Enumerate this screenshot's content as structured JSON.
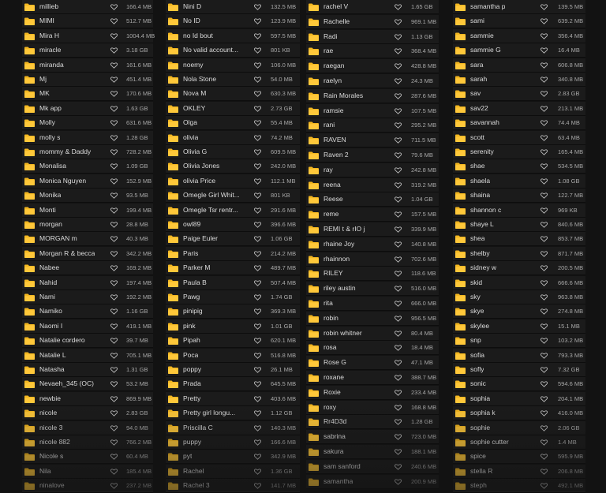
{
  "columns": [
    {
      "rows": [
        {
          "name": "millieb",
          "size": "166.4 MB"
        },
        {
          "name": "MIMI",
          "size": "512.7 MB"
        },
        {
          "name": "Mira H",
          "size": "1004.4 MB"
        },
        {
          "name": "miracle",
          "size": "3.18 GB"
        },
        {
          "name": "miranda",
          "size": "161.6 MB"
        },
        {
          "name": "Mj",
          "size": "451.4 MB"
        },
        {
          "name": "MK",
          "size": "170.6 MB"
        },
        {
          "name": "Mk app",
          "size": "1.63 GB"
        },
        {
          "name": "Molly",
          "size": "631.6 MB"
        },
        {
          "name": "molly s",
          "size": "1.28 GB"
        },
        {
          "name": "mommy & Daddy",
          "size": "728.2 MB"
        },
        {
          "name": "Monalisa",
          "size": "1.09 GB"
        },
        {
          "name": "Monica Nguyen",
          "size": "152.9 MB"
        },
        {
          "name": "Monika",
          "size": "93.5 MB"
        },
        {
          "name": "Monti",
          "size": "199.4 MB"
        },
        {
          "name": "morgan",
          "size": "28.8 MB"
        },
        {
          "name": "MORGAN m",
          "size": "40.3 MB"
        },
        {
          "name": "Morgan R & becca",
          "size": "342.2 MB"
        },
        {
          "name": "Nabee",
          "size": "169.2 MB"
        },
        {
          "name": "Nahid",
          "size": "197.4 MB"
        },
        {
          "name": "Nami",
          "size": "192.2 MB"
        },
        {
          "name": "Namiko",
          "size": "1.16 GB"
        },
        {
          "name": "Naomi I",
          "size": "419.1 MB"
        },
        {
          "name": "Natalie cordero",
          "size": "39.7 MB"
        },
        {
          "name": "Natalie L",
          "size": "705.1 MB"
        },
        {
          "name": "Natasha",
          "size": "1.31 GB"
        },
        {
          "name": "Nevaeh_345 (OC)",
          "size": "53.2 MB"
        },
        {
          "name": "newbie",
          "size": "869.9 MB"
        },
        {
          "name": "nicole",
          "size": "2.83 GB"
        },
        {
          "name": "nicole 3",
          "size": "94.0 MB"
        },
        {
          "name": "nicole 882",
          "size": "766.2 MB"
        },
        {
          "name": "Nicole s",
          "size": "60.4 MB"
        },
        {
          "name": "Nila",
          "size": "185.4 MB"
        },
        {
          "name": "ninalove",
          "size": "237.2 MB"
        }
      ]
    },
    {
      "rows": [
        {
          "name": "Nini D",
          "size": "132.5 MB"
        },
        {
          "name": "No ID",
          "size": "123.9 MB"
        },
        {
          "name": "no Id bout",
          "size": "597.5 MB"
        },
        {
          "name": "No valid account...",
          "size": "801 KB"
        },
        {
          "name": "noemy",
          "size": "106.0 MB"
        },
        {
          "name": "Nola Stone",
          "size": "54.0 MB"
        },
        {
          "name": "Nova M",
          "size": "630.3 MB"
        },
        {
          "name": "OKLEY",
          "size": "2.73 GB"
        },
        {
          "name": "Olga",
          "size": "55.4 MB"
        },
        {
          "name": "olivia",
          "size": "74.2 MB"
        },
        {
          "name": "Olivia G",
          "size": "609.5 MB"
        },
        {
          "name": "Olivia Jones",
          "size": "242.0 MB"
        },
        {
          "name": "olivia Price",
          "size": "112.1 MB"
        },
        {
          "name": "Omegle Girl Whit...",
          "size": "801 KB"
        },
        {
          "name": "Omegle Tsr rentr...",
          "size": "291.6 MB"
        },
        {
          "name": "owl89",
          "size": "396.6 MB"
        },
        {
          "name": "Paige Euler",
          "size": "1.06 GB"
        },
        {
          "name": "Paris",
          "size": "214.2 MB"
        },
        {
          "name": "Parker M",
          "size": "489.7 MB"
        },
        {
          "name": "Paula B",
          "size": "507.4 MB"
        },
        {
          "name": "Pawg",
          "size": "1.74 GB"
        },
        {
          "name": "pinipig",
          "size": "369.3 MB"
        },
        {
          "name": "pink",
          "size": "1.01 GB"
        },
        {
          "name": "Pipah",
          "size": "620.1 MB"
        },
        {
          "name": "Poca",
          "size": "516.8 MB"
        },
        {
          "name": "poppy",
          "size": "26.1 MB"
        },
        {
          "name": "Prada",
          "size": "645.5 MB"
        },
        {
          "name": "Pretty",
          "size": "403.6 MB"
        },
        {
          "name": "Pretty girl longu...",
          "size": "1.12 GB"
        },
        {
          "name": "Priscilla C",
          "size": "140.3 MB"
        },
        {
          "name": "puppy",
          "size": "166.6 MB"
        },
        {
          "name": "pyt",
          "size": "342.9 MB"
        },
        {
          "name": "Rachel",
          "size": "1.36 GB"
        },
        {
          "name": "Rachel 3",
          "size": "141.7 MB"
        }
      ]
    },
    {
      "rows": [
        {
          "name": "rachel V",
          "size": "1.65 GB"
        },
        {
          "name": "Rachelle",
          "size": "969.1 MB"
        },
        {
          "name": "Radi",
          "size": "1.13 GB"
        },
        {
          "name": "rae",
          "size": "368.4 MB"
        },
        {
          "name": "raegan",
          "size": "428.8 MB"
        },
        {
          "name": "raelyn",
          "size": "24.3 MB"
        },
        {
          "name": "Rain Morales",
          "size": "287.6 MB"
        },
        {
          "name": "ramsie",
          "size": "107.5 MB"
        },
        {
          "name": "rani",
          "size": "295.2 MB"
        },
        {
          "name": "RAVEN",
          "size": "711.5 MB"
        },
        {
          "name": "Raven 2",
          "size": "79.6 MB"
        },
        {
          "name": "ray",
          "size": "242.8 MB"
        },
        {
          "name": "reena",
          "size": "319.2 MB"
        },
        {
          "name": "Reese",
          "size": "1.04 GB"
        },
        {
          "name": "reme",
          "size": "157.5 MB"
        },
        {
          "name": "REMI t & rIO j",
          "size": "339.9 MB"
        },
        {
          "name": "rhaine Joy",
          "size": "140.8 MB"
        },
        {
          "name": "rhainnon",
          "size": "702.6 MB"
        },
        {
          "name": "RILEY",
          "size": "118.6 MB"
        },
        {
          "name": "riley austin",
          "size": "516.0 MB"
        },
        {
          "name": "rita",
          "size": "666.0 MB"
        },
        {
          "name": "robin",
          "size": "956.5 MB"
        },
        {
          "name": "robin whitner",
          "size": "80.4 MB"
        },
        {
          "name": "rosa",
          "size": "18.4 MB"
        },
        {
          "name": "Rose G",
          "size": "47.1 MB"
        },
        {
          "name": "roxane",
          "size": "388.7 MB"
        },
        {
          "name": "Roxie",
          "size": "233.4 MB"
        },
        {
          "name": "roxy",
          "size": "168.8 MB"
        },
        {
          "name": "Rr4D3d",
          "size": "1.28 GB"
        },
        {
          "name": "sabrina",
          "size": "723.0 MB"
        },
        {
          "name": "sakura",
          "size": "188.1 MB"
        },
        {
          "name": "sam sanford",
          "size": "240.6 MB"
        },
        {
          "name": "samantha",
          "size": "200.9 MB"
        }
      ]
    },
    {
      "rows": [
        {
          "name": "samantha p",
          "size": "139.5 MB"
        },
        {
          "name": "sami",
          "size": "639.2 MB"
        },
        {
          "name": "sammie",
          "size": "356.4 MB"
        },
        {
          "name": "sammie G",
          "size": "16.4 MB"
        },
        {
          "name": "sara",
          "size": "606.8 MB"
        },
        {
          "name": "sarah",
          "size": "340.8 MB"
        },
        {
          "name": "sav",
          "size": "2.83 GB"
        },
        {
          "name": "sav22",
          "size": "213.1 MB"
        },
        {
          "name": "savannah",
          "size": "74.4 MB"
        },
        {
          "name": "scott",
          "size": "63.4 MB"
        },
        {
          "name": "serenity",
          "size": "165.4 MB"
        },
        {
          "name": "shae",
          "size": "534.5 MB"
        },
        {
          "name": "shaela",
          "size": "1.08 GB"
        },
        {
          "name": "shaina",
          "size": "122.7 MB"
        },
        {
          "name": "shannon c",
          "size": "969 KB"
        },
        {
          "name": "shaye L",
          "size": "840.6 MB"
        },
        {
          "name": "shea",
          "size": "853.7 MB"
        },
        {
          "name": "shelby",
          "size": "871.7 MB"
        },
        {
          "name": "sidney w",
          "size": "200.5 MB"
        },
        {
          "name": "skid",
          "size": "666.6 MB"
        },
        {
          "name": "sky",
          "size": "963.8 MB"
        },
        {
          "name": "skye",
          "size": "274.8 MB"
        },
        {
          "name": "skylee",
          "size": "15.1 MB"
        },
        {
          "name": "snp",
          "size": "103.2 MB"
        },
        {
          "name": "sofia",
          "size": "793.3 MB"
        },
        {
          "name": "sofly",
          "size": "7.32 GB"
        },
        {
          "name": "sonic",
          "size": "594.6 MB"
        },
        {
          "name": "sophia",
          "size": "204.1 MB"
        },
        {
          "name": "sophia k",
          "size": "416.0 MB"
        },
        {
          "name": "sophie",
          "size": "2.06 GB"
        },
        {
          "name": "sophie cutter",
          "size": "1.4 MB"
        },
        {
          "name": "spice",
          "size": "595.9 MB"
        },
        {
          "name": "stella R",
          "size": "206.8 MB"
        },
        {
          "name": "steph",
          "size": "492.1 MB"
        }
      ]
    }
  ]
}
